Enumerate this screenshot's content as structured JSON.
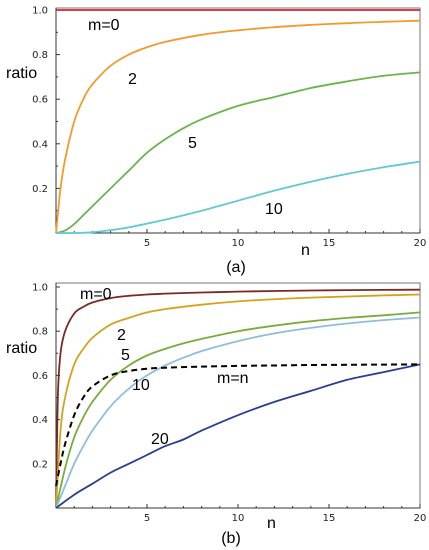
{
  "chart_data": [
    {
      "type": "line",
      "panel_label": "(a)",
      "xlabel": "n",
      "ylabel": "ratio",
      "xlim": [
        0,
        20
      ],
      "ylim": [
        0,
        1
      ],
      "xticks": [
        "5",
        "10",
        "15",
        "20"
      ],
      "yticks": [
        "0.2",
        "0.4",
        "0.6",
        "0.8",
        "1.0"
      ],
      "series": [
        {
          "label": "m=0",
          "color": "#d0222e",
          "x": [
            0,
            2,
            4,
            6,
            8,
            10,
            12,
            14,
            16,
            18,
            20
          ],
          "y": [
            1.0,
            1.0,
            1.0,
            1.0,
            1.0,
            1.0,
            1.0,
            1.0,
            1.0,
            1.0,
            1.0
          ]
        },
        {
          "label": "2",
          "color": "#f39a2a",
          "x": [
            0,
            0.25,
            0.5,
            1,
            1.5,
            2,
            3,
            4,
            5,
            6,
            8,
            10,
            12,
            14,
            16,
            18,
            20
          ],
          "y": [
            0.0,
            0.2,
            0.33,
            0.5,
            0.6,
            0.667,
            0.75,
            0.8,
            0.833,
            0.857,
            0.889,
            0.909,
            0.923,
            0.933,
            0.941,
            0.947,
            0.952
          ]
        },
        {
          "label": "5",
          "color": "#6ab54a",
          "x": [
            0,
            0.5,
            1,
            1.5,
            2,
            3,
            4,
            5,
            6,
            7,
            8,
            10,
            12,
            14,
            16,
            18,
            20
          ],
          "y": [
            0.0,
            0.011,
            0.04,
            0.08,
            0.12,
            0.2,
            0.28,
            0.36,
            0.42,
            0.47,
            0.51,
            0.57,
            0.61,
            0.65,
            0.68,
            0.705,
            0.72
          ]
        },
        {
          "label": "10",
          "color": "#5fc9d6",
          "x": [
            0,
            1,
            2,
            3,
            4,
            5,
            6,
            8,
            10,
            12,
            14,
            16,
            18,
            20
          ],
          "y": [
            0.0,
            0.0,
            0.003,
            0.013,
            0.025,
            0.042,
            0.06,
            0.1,
            0.145,
            0.19,
            0.23,
            0.265,
            0.295,
            0.32
          ]
        }
      ],
      "annotations": [
        "m=0",
        "2",
        "5",
        "10"
      ]
    },
    {
      "type": "line",
      "panel_label": "(b)",
      "xlabel": "n",
      "ylabel": "ratio",
      "xlim": [
        0,
        20
      ],
      "ylim": [
        0,
        1
      ],
      "xticks": [
        "5",
        "10",
        "15",
        "20"
      ],
      "yticks": [
        "0.2",
        "0.4",
        "0.6",
        "0.8",
        "1.0"
      ],
      "series": [
        {
          "label": "m=0",
          "color": "#7a2a22",
          "x": [
            0,
            0.1,
            0.25,
            0.5,
            1,
            1.5,
            2,
            3,
            4,
            5,
            6,
            8,
            10,
            12,
            14,
            16,
            18,
            20
          ],
          "y": [
            0.0,
            0.5,
            0.7,
            0.8,
            0.88,
            0.91,
            0.93,
            0.95,
            0.96,
            0.966,
            0.97,
            0.975,
            0.979,
            0.982,
            0.984,
            0.986,
            0.987,
            0.988
          ]
        },
        {
          "label": "2",
          "color": "#d4a31e",
          "x": [
            0,
            0.25,
            0.5,
            1,
            1.5,
            2,
            3,
            4,
            5,
            6,
            8,
            10,
            12,
            14,
            16,
            18,
            20
          ],
          "y": [
            0.0,
            0.35,
            0.5,
            0.65,
            0.72,
            0.77,
            0.83,
            0.86,
            0.885,
            0.9,
            0.92,
            0.935,
            0.945,
            0.952,
            0.957,
            0.962,
            0.966
          ]
        },
        {
          "label": "5",
          "color": "#78ad3c",
          "x": [
            0,
            0.5,
            1,
            1.5,
            2,
            3,
            4,
            5,
            6,
            7,
            8,
            10,
            12,
            14,
            16,
            18,
            20
          ],
          "y": [
            0.0,
            0.18,
            0.32,
            0.41,
            0.48,
            0.58,
            0.645,
            0.69,
            0.72,
            0.745,
            0.765,
            0.8,
            0.825,
            0.845,
            0.86,
            0.872,
            0.885
          ]
        },
        {
          "label": "10",
          "color": "#8fbde0",
          "x": [
            0,
            0.5,
            1,
            1.5,
            2,
            3,
            4,
            5,
            6,
            7,
            8,
            10,
            12,
            14,
            16,
            18,
            20
          ],
          "y": [
            0.0,
            0.1,
            0.2,
            0.28,
            0.35,
            0.46,
            0.54,
            0.6,
            0.645,
            0.68,
            0.71,
            0.755,
            0.79,
            0.815,
            0.835,
            0.85,
            0.862
          ]
        },
        {
          "label": "20",
          "color": "#2a3d8f",
          "x": [
            0,
            1,
            2,
            3,
            4,
            5,
            6,
            7,
            8,
            10,
            12,
            14,
            16,
            18,
            20
          ],
          "y": [
            0.0,
            0.06,
            0.11,
            0.16,
            0.2,
            0.24,
            0.28,
            0.31,
            0.35,
            0.42,
            0.48,
            0.53,
            0.58,
            0.615,
            0.65
          ]
        },
        {
          "label": "m=n",
          "color": "#000000",
          "dashed": true,
          "x": [
            0,
            0.25,
            0.5,
            1,
            1.5,
            2,
            3,
            4,
            5,
            6,
            8,
            10,
            12,
            14,
            16,
            18,
            20
          ],
          "y": [
            0.1,
            0.2,
            0.29,
            0.42,
            0.5,
            0.55,
            0.6,
            0.62,
            0.63,
            0.635,
            0.64,
            0.643,
            0.645,
            0.647,
            0.648,
            0.649,
            0.65
          ]
        }
      ],
      "annotations": [
        "m=0",
        "2",
        "5",
        "10",
        "m=n",
        "20"
      ]
    }
  ]
}
